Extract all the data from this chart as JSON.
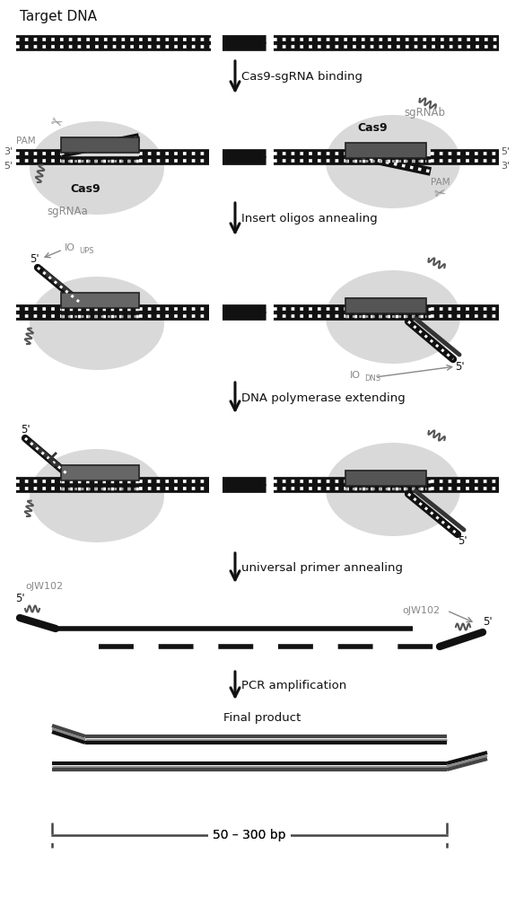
{
  "bg_color": "#ffffff",
  "annotations": {
    "target_dna": "Target DNA",
    "cas9_binding": "Cas9-sgRNA binding",
    "insert_oligos": "Insert oligos annealing",
    "dna_poly": "DNA polymerase extending",
    "univ_primer": "universal primer annealing",
    "pcr_ampl": "PCR amplification",
    "final_prod": "Final product",
    "size_label": "50 – 300 bp",
    "pam_left": "PAM",
    "pam_right": "PAM",
    "three_left": "3'",
    "five_left": "5'",
    "five_right": "5'",
    "three_right": "3'",
    "sgrnaa": "sgRNAa",
    "sgrnab": "sgRNAb",
    "cas9": "Cas9",
    "io_ups": "IO",
    "io_ups_sub": "UPS",
    "io_dns": "IO",
    "io_dns_sub": "DNS",
    "ojw102": "oJW102",
    "five_prime": "5'"
  },
  "colors": {
    "black": "#111111",
    "dark_gray": "#444444",
    "mid_gray": "#777777",
    "light_gray": "#aaaaaa",
    "blob_gray": "#bbbbbb",
    "white": "#ffffff",
    "text_dark": "#333333",
    "text_gray": "#888888"
  }
}
